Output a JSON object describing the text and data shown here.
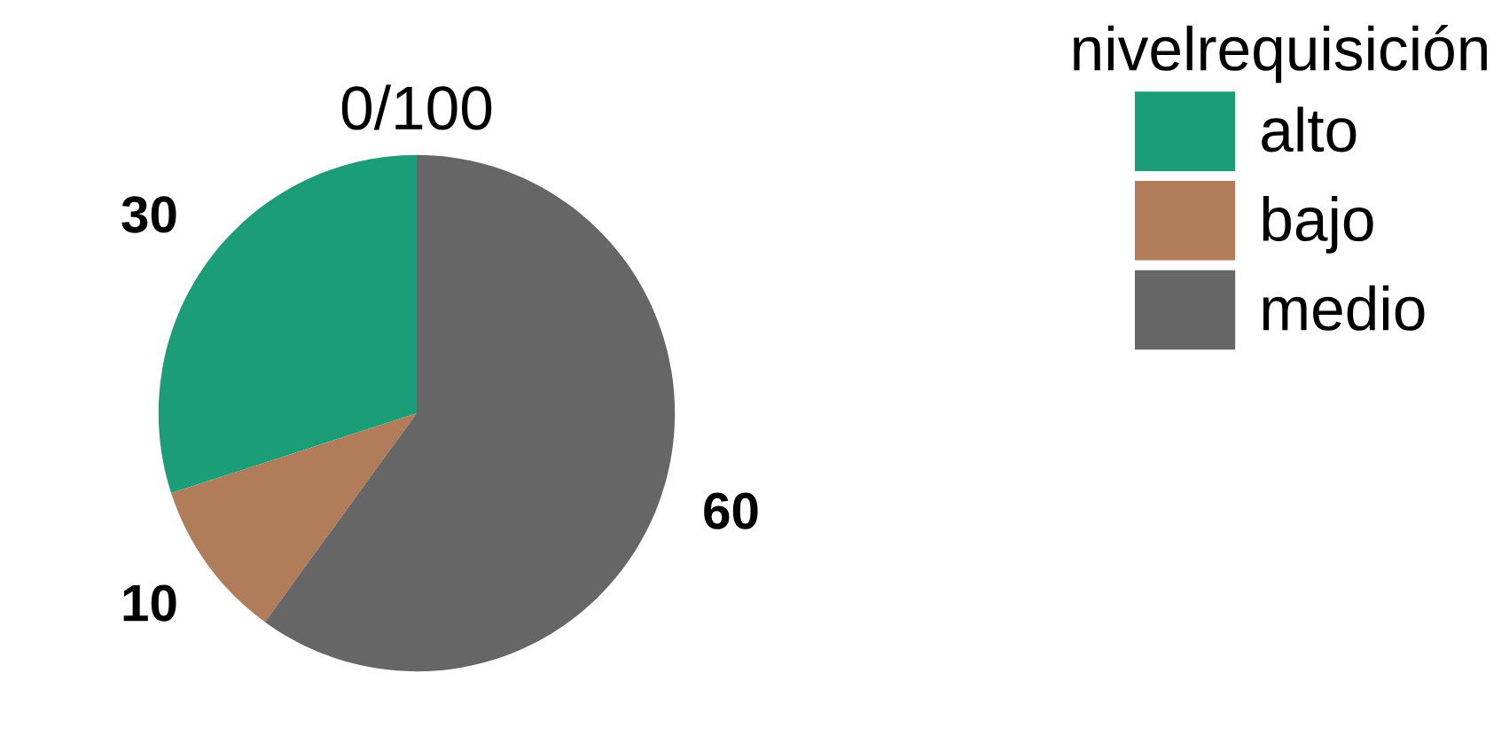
{
  "chart_data": {
    "type": "pie",
    "categories": [
      "alto",
      "bajo",
      "medio"
    ],
    "values": [
      30,
      10,
      60
    ],
    "colors": [
      "#1b9e77",
      "#b07c5a",
      "#666666"
    ],
    "data_labels": true,
    "legend_title": "nivelrequisición",
    "legend": "right",
    "annotations": [
      "0/100"
    ]
  }
}
